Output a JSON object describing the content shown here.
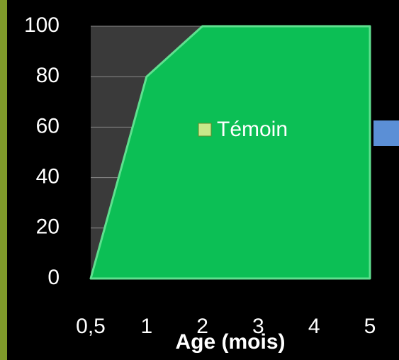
{
  "chart_data": {
    "type": "area",
    "x_label": "Age (mois)",
    "categories": [
      "0,5",
      "1",
      "2",
      "3",
      "4",
      "5"
    ],
    "series": [
      {
        "name": "Témoin",
        "color": "#0cbf55",
        "values": [
          0,
          80,
          100,
          100,
          100,
          100
        ]
      }
    ],
    "ylim": [
      0,
      100
    ],
    "yticks": [
      0,
      20,
      40,
      60,
      80,
      100
    ],
    "grid": true,
    "legend": "center"
  }
}
